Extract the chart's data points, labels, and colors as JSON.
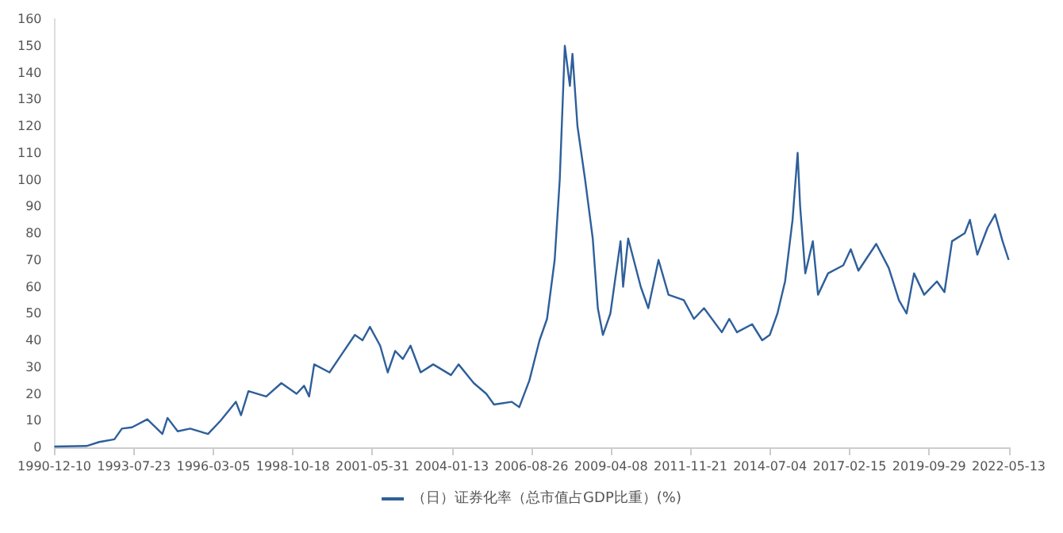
{
  "chart_data": {
    "type": "line",
    "legend": "bottom",
    "grid": false,
    "marker": "none",
    "line_style": "solid",
    "xlim": [
      "1990-12-10",
      "2022-05-13"
    ],
    "xticks": [
      "1990-12-10",
      "1993-07-23",
      "1996-03-05",
      "1998-10-18",
      "2001-05-31",
      "2004-01-13",
      "2006-08-26",
      "2009-04-08",
      "2011-11-21",
      "2014-07-04",
      "2017-02-15",
      "2019-09-29",
      "2022-05-13"
    ],
    "ylim": [
      0,
      160
    ],
    "yticks": [
      0,
      10,
      20,
      30,
      40,
      50,
      60,
      70,
      80,
      90,
      100,
      110,
      120,
      130,
      140,
      150,
      160
    ],
    "series": [
      {
        "name": "（日）证券化率（总市值占GDP比重）(%)",
        "color": "#2e5f9a",
        "x": [
          "1990-12-10",
          "1992-01",
          "1992-06",
          "1992-12",
          "1993-03",
          "1993-07",
          "1994-01",
          "1994-07",
          "1994-09",
          "1995-01",
          "1995-06",
          "1996-01",
          "1996-06",
          "1996-12",
          "1997-02",
          "1997-05",
          "1997-12",
          "1998-06",
          "1998-12",
          "1999-03",
          "1999-05",
          "1999-07",
          "2000-01",
          "2000-06",
          "2000-11",
          "2001-02",
          "2001-05",
          "2001-09",
          "2001-12",
          "2002-03",
          "2002-06",
          "2002-09",
          "2003-01",
          "2003-06",
          "2004-01",
          "2004-04",
          "2004-10",
          "2005-03",
          "2005-06",
          "2006-01",
          "2006-04",
          "2006-08",
          "2006-12",
          "2007-03",
          "2007-06",
          "2007-08",
          "2007-10",
          "2007-12",
          "2008-01",
          "2008-03",
          "2008-06",
          "2008-09",
          "2008-11",
          "2009-01",
          "2009-04",
          "2009-08",
          "2009-09",
          "2009-11",
          "2010-04",
          "2010-07",
          "2010-11",
          "2011-03",
          "2011-09",
          "2012-01",
          "2012-05",
          "2012-12",
          "2013-03",
          "2013-06",
          "2013-12",
          "2014-04",
          "2014-07",
          "2014-10",
          "2015-01",
          "2015-04",
          "2015-06",
          "2015-07",
          "2015-09",
          "2015-12",
          "2016-02",
          "2016-06",
          "2016-12",
          "2017-03",
          "2017-06",
          "2018-01",
          "2018-06",
          "2018-10",
          "2019-01",
          "2019-04",
          "2019-08",
          "2020-01",
          "2020-04",
          "2020-07",
          "2020-12",
          "2021-02",
          "2021-05",
          "2021-09",
          "2021-12",
          "2022-03",
          "2022-05-13"
        ],
        "values": [
          0.3,
          0.5,
          2,
          3,
          7,
          7.5,
          10.5,
          5,
          11,
          6,
          7,
          5,
          10,
          17,
          12,
          21,
          19,
          24,
          20,
          23,
          19,
          31,
          28,
          35,
          42,
          40,
          45,
          38,
          28,
          36,
          33,
          38,
          28,
          31,
          27,
          31,
          24,
          20,
          16,
          17,
          15,
          25,
          40,
          48,
          70,
          100,
          150,
          135,
          147,
          120,
          100,
          78,
          52,
          42,
          50,
          77,
          60,
          78,
          60,
          52,
          70,
          57,
          55,
          48,
          52,
          43,
          48,
          43,
          46,
          40,
          42,
          50,
          62,
          85,
          110,
          90,
          65,
          77,
          57,
          65,
          68,
          74,
          66,
          76,
          67,
          55,
          50,
          65,
          57,
          62,
          58,
          77,
          80,
          85,
          72,
          82,
          87,
          77,
          70
        ]
      }
    ]
  }
}
